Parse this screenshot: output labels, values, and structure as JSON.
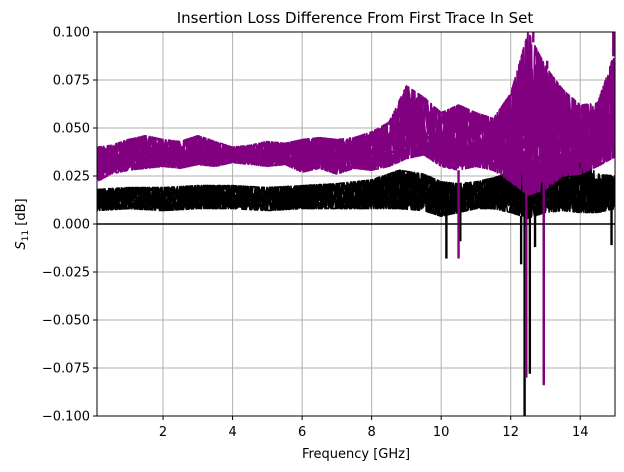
{
  "chart_data": {
    "type": "line",
    "title": "Insertion Loss Difference From First Trace In Set",
    "xlabel": "Frequency [GHz]",
    "ylabel_main": "S",
    "ylabel_sub": "11",
    "ylabel_unit": " [dB]",
    "xlim": [
      0.1,
      15.0
    ],
    "ylim": [
      -0.1,
      0.1
    ],
    "xticks": [
      2,
      4,
      6,
      8,
      10,
      12,
      14
    ],
    "xtick_labels": [
      "2",
      "4",
      "6",
      "8",
      "10",
      "12",
      "14"
    ],
    "yticks": [
      -0.1,
      -0.075,
      -0.05,
      -0.025,
      0.0,
      0.025,
      0.05,
      0.075,
      0.1
    ],
    "ytick_labels": [
      "−0.100",
      "−0.075",
      "−0.050",
      "−0.025",
      "0.000",
      "0.025",
      "0.050",
      "0.075",
      "0.100"
    ],
    "grid": true,
    "series_colors": [
      "#000000",
      "#800080"
    ],
    "reference_line": {
      "y": 0.0,
      "color": "#000000"
    },
    "black_envelope": {
      "x": [
        0.1,
        1.0,
        2.0,
        3.0,
        4.0,
        5.0,
        6.0,
        7.0,
        8.0,
        8.8,
        9.5,
        10.0,
        10.5,
        11.0,
        11.5,
        12.0,
        12.5,
        13.0,
        13.5,
        14.0,
        14.5,
        15.0
      ],
      "low": [
        0.007,
        0.008,
        0.007,
        0.008,
        0.008,
        0.007,
        0.008,
        0.008,
        0.008,
        0.008,
        0.007,
        0.004,
        0.006,
        0.008,
        0.008,
        0.006,
        0.003,
        0.006,
        0.007,
        0.006,
        0.006,
        0.008
      ],
      "high": [
        0.018,
        0.019,
        0.019,
        0.02,
        0.02,
        0.019,
        0.02,
        0.021,
        0.023,
        0.028,
        0.026,
        0.022,
        0.021,
        0.022,
        0.024,
        0.027,
        0.03,
        0.032,
        0.037,
        0.034,
        0.026,
        0.025
      ]
    },
    "black_spikes": [
      {
        "x": 10.15,
        "y": -0.018
      },
      {
        "x": 10.55,
        "y": -0.009
      },
      {
        "x": 12.3,
        "y": -0.021
      },
      {
        "x": 12.4,
        "y": -0.1
      },
      {
        "x": 12.55,
        "y": -0.078
      },
      {
        "x": 12.7,
        "y": -0.012
      },
      {
        "x": 12.95,
        "y": -0.082
      },
      {
        "x": 14.9,
        "y": -0.011
      }
    ],
    "purple_envelope": {
      "x": [
        0.1,
        0.5,
        1.0,
        1.5,
        2.0,
        2.5,
        3.0,
        3.5,
        4.0,
        4.5,
        5.0,
        5.5,
        6.0,
        6.5,
        7.0,
        7.5,
        8.0,
        8.5,
        9.0,
        9.5,
        10.0,
        10.5,
        11.0,
        11.5,
        12.0,
        12.5,
        13.0,
        13.5,
        14.0,
        14.5,
        15.0
      ],
      "low": [
        0.022,
        0.026,
        0.028,
        0.029,
        0.03,
        0.029,
        0.031,
        0.03,
        0.032,
        0.031,
        0.03,
        0.031,
        0.027,
        0.029,
        0.026,
        0.029,
        0.028,
        0.03,
        0.034,
        0.036,
        0.03,
        0.028,
        0.03,
        0.028,
        0.022,
        0.015,
        0.018,
        0.025,
        0.026,
        0.03,
        0.035
      ],
      "high": [
        0.04,
        0.041,
        0.044,
        0.046,
        0.044,
        0.043,
        0.046,
        0.043,
        0.04,
        0.041,
        0.043,
        0.042,
        0.044,
        0.045,
        0.044,
        0.045,
        0.048,
        0.053,
        0.072,
        0.066,
        0.058,
        0.062,
        0.058,
        0.055,
        0.068,
        0.1,
        0.082,
        0.07,
        0.062,
        0.063,
        0.09
      ]
    },
    "purple_spikes": [
      {
        "x": 10.5,
        "y": -0.018
      },
      {
        "x": 12.45,
        "y": -0.08
      },
      {
        "x": 12.65,
        "y": 0.1
      },
      {
        "x": 12.95,
        "y": -0.084
      },
      {
        "x": 13.05,
        "y": 0.085
      },
      {
        "x": 14.95,
        "y": 0.1
      }
    ]
  }
}
